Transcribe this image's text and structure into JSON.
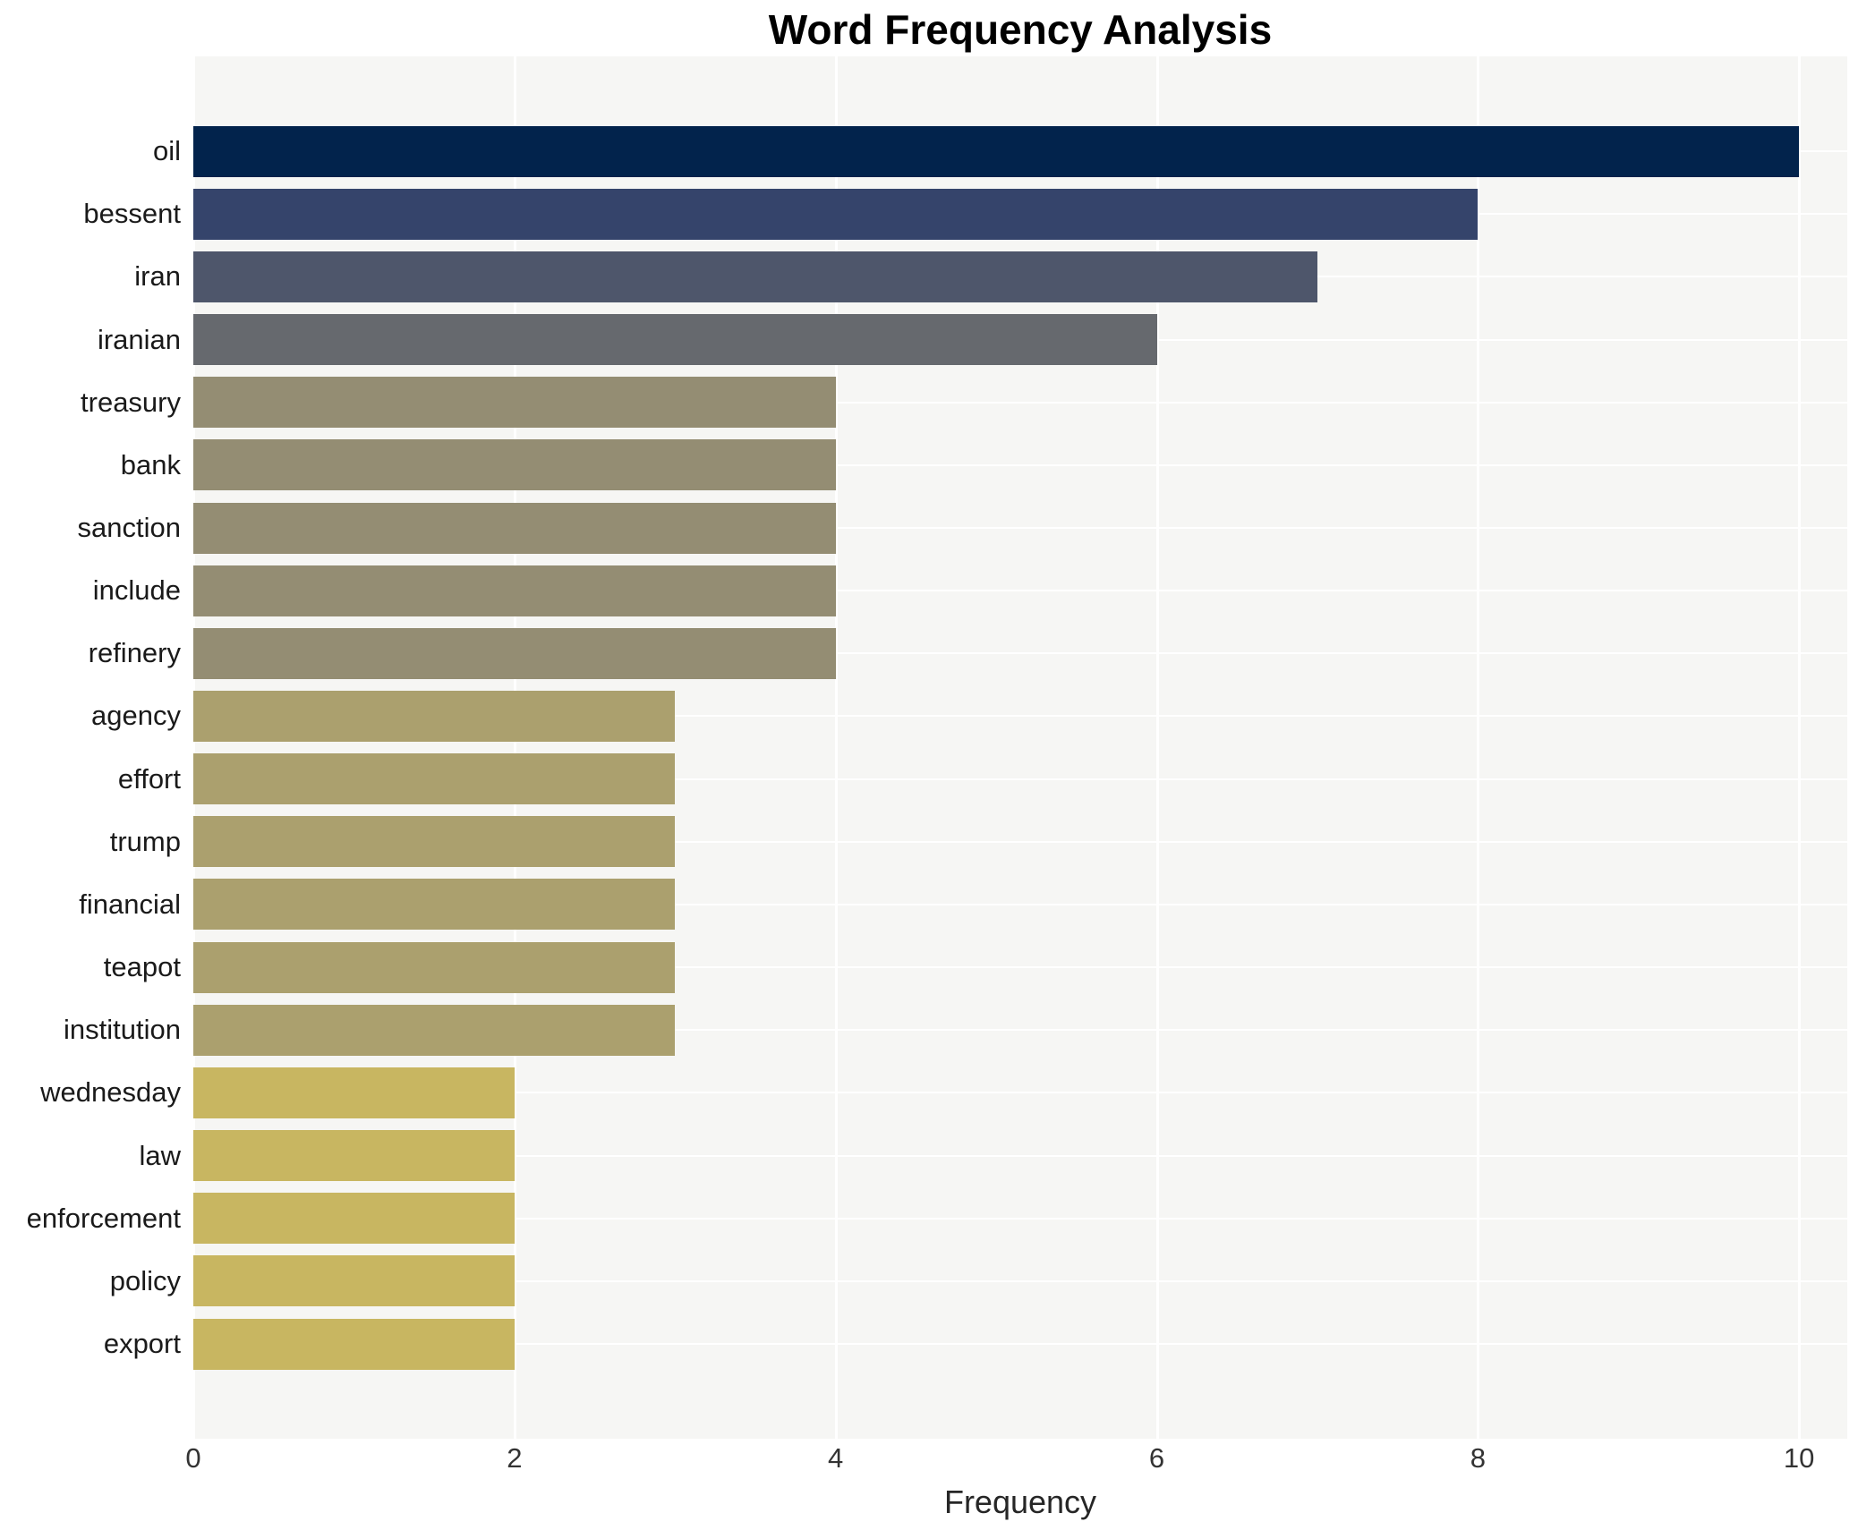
{
  "chart_data": {
    "type": "bar",
    "orientation": "horizontal",
    "title": "Word Frequency Analysis",
    "xlabel": "Frequency",
    "ylabel": "",
    "xlim": [
      0,
      10.3
    ],
    "xticks": [
      0,
      2,
      4,
      6,
      8,
      10
    ],
    "grid": "white gridlines on light-gray panel",
    "legend": "none",
    "panel_background": "#f6f6f4",
    "gridline_color": "#ffffff",
    "categories": [
      "oil",
      "bessent",
      "iran",
      "iranian",
      "treasury",
      "bank",
      "sanction",
      "include",
      "refinery",
      "agency",
      "effort",
      "trump",
      "financial",
      "teapot",
      "institution",
      "wednesday",
      "law",
      "enforcement",
      "policy",
      "export"
    ],
    "values": [
      10,
      8,
      7,
      6,
      4,
      4,
      4,
      4,
      4,
      3,
      3,
      3,
      3,
      3,
      3,
      2,
      2,
      2,
      2,
      2
    ],
    "bar_colors": [
      "#02234c",
      "#35446b",
      "#4e566b",
      "#66696e",
      "#948d73",
      "#948d73",
      "#948d73",
      "#948d73",
      "#948d73",
      "#aba06e",
      "#aba06e",
      "#aba06e",
      "#aba06e",
      "#aba06e",
      "#aba06e",
      "#c8b661",
      "#c8b661",
      "#c8b661",
      "#c8b661",
      "#c8b661"
    ]
  }
}
